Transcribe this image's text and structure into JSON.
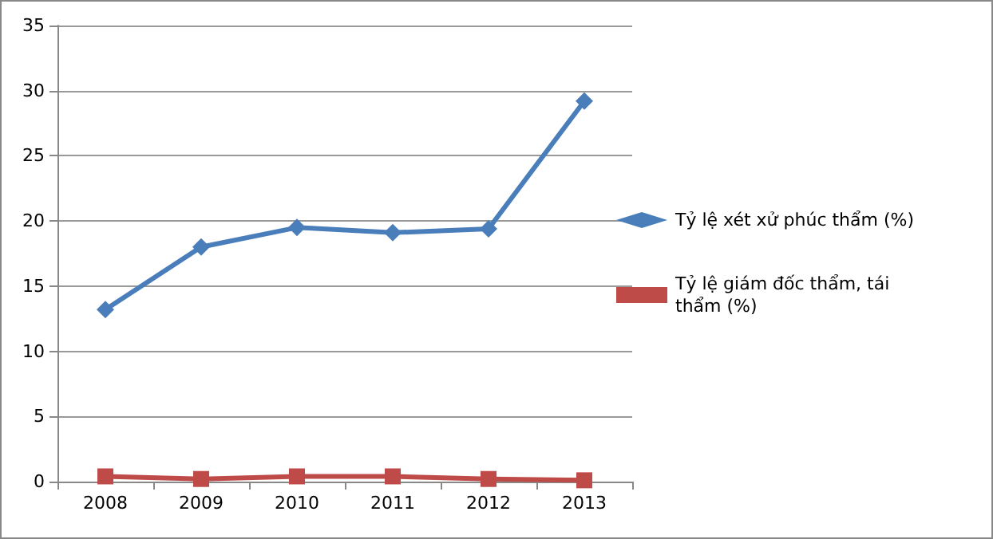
{
  "chart_data": {
    "type": "line",
    "categories": [
      "2008",
      "2009",
      "2010",
      "2011",
      "2012",
      "2013"
    ],
    "series": [
      {
        "name": "Tỷ lệ xét xử phúc thẩm (%)",
        "color": "#4a7ebb",
        "marker": "diamond",
        "values": [
          13.2,
          18.0,
          19.5,
          19.1,
          19.4,
          29.2
        ]
      },
      {
        "name": "Tỷ lệ giám đốc thẩm, tái thẩm (%)",
        "color": "#be4b48",
        "marker": "square",
        "values": [
          0.4,
          0.2,
          0.4,
          0.4,
          0.2,
          0.1
        ]
      }
    ],
    "ylim": [
      0,
      35
    ],
    "yticks": [
      0,
      5,
      10,
      15,
      20,
      25,
      30,
      35
    ],
    "grid": "y",
    "legend": "right",
    "line_style": "solid"
  }
}
